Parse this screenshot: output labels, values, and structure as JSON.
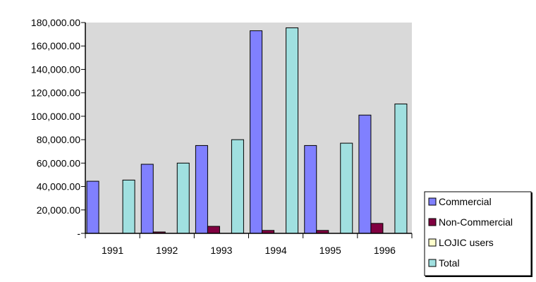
{
  "chart_data": {
    "type": "bar",
    "title": "",
    "xlabel": "",
    "ylabel": "",
    "categories": [
      "1991",
      "1992",
      "1993",
      "1994",
      "1995",
      "1996"
    ],
    "ylim": [
      0,
      180000
    ],
    "yticks": [
      0,
      20000,
      40000,
      60000,
      80000,
      100000,
      120000,
      140000,
      160000,
      180000
    ],
    "ytick_labels": [
      "-",
      "20,000.00",
      "40,000.00",
      "60,000.00",
      "80,000.00",
      "100,000.00",
      "120,000.00",
      "140,000.00",
      "160,000.00",
      "180,000.00"
    ],
    "grid": false,
    "plot_background": "#d9d9d9",
    "legend_position": "bottom-right",
    "series": [
      {
        "name": "Commercial",
        "color": "#8080ff",
        "values": [
          44500,
          59000,
          75000,
          173000,
          75000,
          101000
        ]
      },
      {
        "name": "Non-Commercial",
        "color": "#800040",
        "values": [
          0,
          1200,
          6000,
          2500,
          2500,
          8500
        ]
      },
      {
        "name": "LOJIC users",
        "color": "#ffffcc",
        "values": [
          0,
          0,
          0,
          0,
          0,
          0
        ]
      },
      {
        "name": "Total",
        "color": "#a0e0e0",
        "values": [
          45500,
          60000,
          80000,
          175500,
          77000,
          110500
        ]
      }
    ]
  }
}
